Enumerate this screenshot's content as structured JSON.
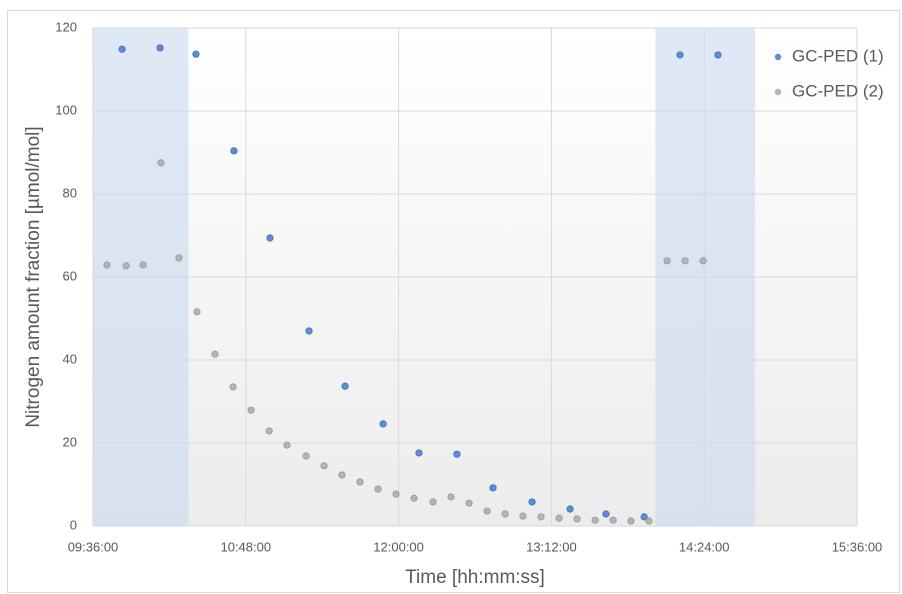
{
  "chart_data": {
    "type": "scatter",
    "x_label": "Time [hh:mm:ss]",
    "y_label": "Nitrogen amount fraction [µmol/mol]",
    "xlim": [
      576,
      936
    ],
    "xticks": [
      {
        "value": 576,
        "label": "09:36:00"
      },
      {
        "value": 648,
        "label": "10:48:00"
      },
      {
        "value": 720,
        "label": "12:00:00"
      },
      {
        "value": 792,
        "label": "13:12:00"
      },
      {
        "value": 864,
        "label": "14:24:00"
      },
      {
        "value": 936,
        "label": "15:36:00"
      }
    ],
    "ylim": [
      0,
      120
    ],
    "yticks": [
      0,
      20,
      40,
      60,
      80,
      100,
      120
    ],
    "grid": true,
    "legend": "top-right",
    "shaded_ranges": [
      [
        576,
        621
      ],
      [
        841,
        888
      ]
    ],
    "series": [
      {
        "name": "GC-PED (1)",
        "color": "#5b8ed6",
        "x": [
          589.7,
          607.6,
          624.5,
          642.4,
          659.4,
          677.8,
          694.8,
          712.7,
          729.6,
          747.5,
          764.5,
          782.9,
          800.8,
          817.7,
          835.7,
          852.6,
          870.5
        ],
        "values": [
          114.9,
          115.2,
          113.7,
          90.4,
          69.4,
          47.0,
          33.7,
          24.6,
          17.6,
          17.3,
          9.2,
          5.8,
          4.1,
          2.9,
          2.2,
          113.5,
          113.5
        ]
      },
      {
        "name": "GC-PED (2)",
        "color": "#b4b4b4",
        "x": [
          582.6,
          591.6,
          599.6,
          608.0,
          616.5,
          625.0,
          633.5,
          642.0,
          650.5,
          659.0,
          667.4,
          676.4,
          684.9,
          693.3,
          701.8,
          710.3,
          718.8,
          727.3,
          736.2,
          744.7,
          753.2,
          761.7,
          770.2,
          778.6,
          787.1,
          795.6,
          804.1,
          812.6,
          821.1,
          829.5,
          838.0,
          846.5,
          855.0,
          863.5
        ],
        "values": [
          62.9,
          62.7,
          62.9,
          87.5,
          64.6,
          51.6,
          41.4,
          33.5,
          27.9,
          22.9,
          19.5,
          16.9,
          14.5,
          12.3,
          10.6,
          8.9,
          7.7,
          6.7,
          5.8,
          7.0,
          5.5,
          3.6,
          2.9,
          2.4,
          2.2,
          1.9,
          1.7,
          1.4,
          1.4,
          1.2,
          1.2,
          63.9,
          63.9,
          63.9
        ]
      }
    ]
  }
}
